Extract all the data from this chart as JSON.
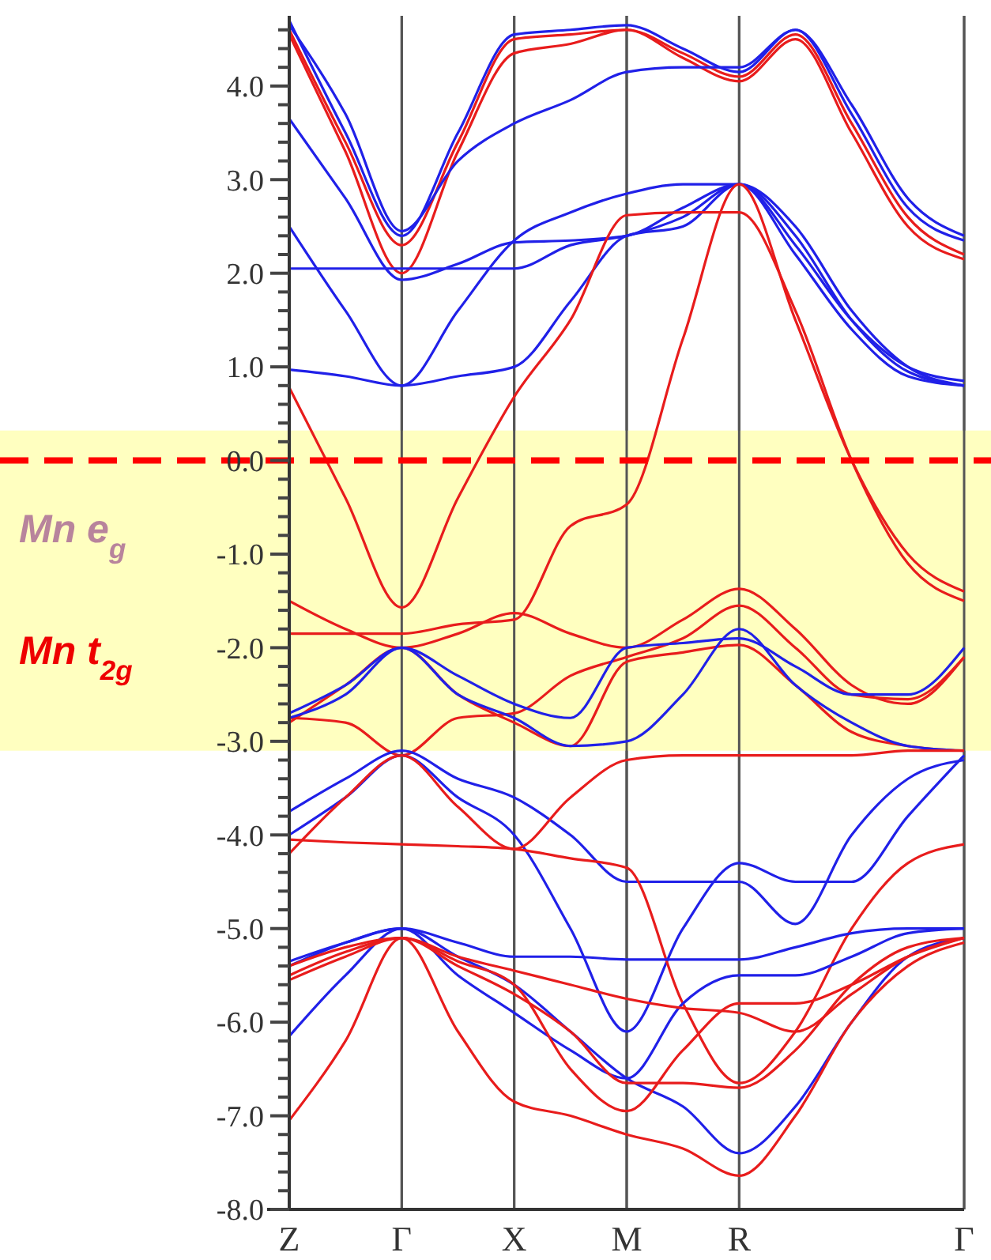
{
  "chart_data": {
    "type": "line",
    "categories": [
      "Z",
      null,
      "Γ",
      null,
      "X",
      null,
      "M",
      null,
      "R",
      null,
      null,
      null,
      "Γ"
    ],
    "ylim": [
      -8,
      4.75
    ],
    "yticks": [
      {
        "value": -8,
        "label": "-8.0"
      },
      {
        "value": -7.8,
        "label": null
      },
      {
        "value": -7.6,
        "label": null
      },
      {
        "value": -7.4,
        "label": null
      },
      {
        "value": -7.2,
        "label": null
      },
      {
        "value": -7,
        "label": "-7.0"
      },
      {
        "value": -6.8,
        "label": null
      },
      {
        "value": -6.6,
        "label": null
      },
      {
        "value": -6.4,
        "label": null
      },
      {
        "value": -6.2,
        "label": null
      },
      {
        "value": -6,
        "label": "-6.0"
      },
      {
        "value": -5.8,
        "label": null
      },
      {
        "value": -5.6,
        "label": null
      },
      {
        "value": -5.4,
        "label": null
      },
      {
        "value": -5.2,
        "label": null
      },
      {
        "value": -5,
        "label": "-5.0"
      },
      {
        "value": -4.8,
        "label": null
      },
      {
        "value": -4.6,
        "label": null
      },
      {
        "value": -4.4,
        "label": null
      },
      {
        "value": -4.2,
        "label": null
      },
      {
        "value": -4,
        "label": "-4.0"
      },
      {
        "value": -3.8,
        "label": null
      },
      {
        "value": -3.6,
        "label": null
      },
      {
        "value": -3.4,
        "label": null
      },
      {
        "value": -3.2,
        "label": null
      },
      {
        "value": -3,
        "label": "-3.0"
      },
      {
        "value": -2.8,
        "label": null
      },
      {
        "value": -2.6,
        "label": null
      },
      {
        "value": -2.4,
        "label": null
      },
      {
        "value": -2.2,
        "label": null
      },
      {
        "value": -2,
        "label": "-2.0"
      },
      {
        "value": -1.8,
        "label": null
      },
      {
        "value": -1.6,
        "label": null
      },
      {
        "value": -1.4,
        "label": null
      },
      {
        "value": -1.2,
        "label": null
      },
      {
        "value": -1,
        "label": "-1.0"
      },
      {
        "value": -0.8,
        "label": null
      },
      {
        "value": -0.6,
        "label": null
      },
      {
        "value": -0.4,
        "label": null
      },
      {
        "value": -0.2,
        "label": null
      },
      {
        "value": 0,
        "label": "0.0"
      },
      {
        "value": 0.2,
        "label": null
      },
      {
        "value": 0.4,
        "label": null
      },
      {
        "value": 0.6,
        "label": null
      },
      {
        "value": 0.8,
        "label": null
      },
      {
        "value": 1,
        "label": "1.0"
      },
      {
        "value": 1.2,
        "label": null
      },
      {
        "value": 1.4,
        "label": null
      },
      {
        "value": 1.6,
        "label": null
      },
      {
        "value": 1.8,
        "label": null
      },
      {
        "value": 2,
        "label": "2.0"
      },
      {
        "value": 2.2,
        "label": null
      },
      {
        "value": 2.4,
        "label": null
      },
      {
        "value": 2.6,
        "label": null
      },
      {
        "value": 2.8,
        "label": null
      },
      {
        "value": 3,
        "label": "3.0"
      },
      {
        "value": 3.2,
        "label": null
      },
      {
        "value": 3.4,
        "label": null
      },
      {
        "value": 3.6,
        "label": null
      },
      {
        "value": 3.8,
        "label": null
      },
      {
        "value": 4,
        "label": "4.0"
      },
      {
        "value": 4.2,
        "label": null
      },
      {
        "value": 4.4,
        "label": null
      },
      {
        "value": 4.6,
        "label": null
      }
    ],
    "grid": "x",
    "line_style": "solid",
    "series": [
      {
        "color": "#2020e8",
        "values": [
          4.7,
          3.5,
          2.4,
          3.5,
          4.55,
          4.6,
          4.65,
          4.4,
          4.15,
          4.6,
          3.7,
          2.7,
          2.35
        ]
      },
      {
        "color": "#e81c1c",
        "values": [
          4.6,
          3.4,
          2.3,
          3.4,
          4.5,
          4.55,
          4.6,
          4.35,
          4.1,
          4.55,
          3.6,
          2.6,
          2.2
        ]
      },
      {
        "color": "#e81c1c",
        "values": [
          4.55,
          3.3,
          2.0,
          3.3,
          4.35,
          4.45,
          4.6,
          4.3,
          4.05,
          4.5,
          3.5,
          2.5,
          2.15
        ]
      },
      {
        "color": "#2020e8",
        "values": [
          4.65,
          3.7,
          2.45,
          3.2,
          3.6,
          3.85,
          4.15,
          4.2,
          4.2,
          4.6,
          3.8,
          2.8,
          2.4
        ]
      },
      {
        "color": "#2020e8",
        "values": [
          3.65,
          2.8,
          1.93,
          2.1,
          2.33,
          2.35,
          2.4,
          2.7,
          2.95,
          2.5,
          1.6,
          1.0,
          0.8
        ]
      },
      {
        "color": "#2020e8",
        "values": [
          2.05,
          2.05,
          2.05,
          2.05,
          2.05,
          2.3,
          2.4,
          2.6,
          2.95,
          2.4,
          1.5,
          0.95,
          0.8
        ]
      },
      {
        "color": "#2020e8",
        "values": [
          2.5,
          1.6,
          0.8,
          1.6,
          2.35,
          2.65,
          2.85,
          2.95,
          2.95,
          2.3,
          1.5,
          1.0,
          0.85
        ]
      },
      {
        "color": "#2020e8",
        "values": [
          0.97,
          0.9,
          0.8,
          0.9,
          1.0,
          1.7,
          2.4,
          2.5,
          2.95,
          2.2,
          1.4,
          0.9,
          0.8
        ]
      },
      {
        "color": "#e81c1c",
        "values": [
          0.78,
          -0.4,
          -1.57,
          -0.4,
          0.68,
          1.5,
          2.62,
          2.65,
          2.65,
          1.6,
          0.0,
          -1.1,
          -1.5
        ]
      },
      {
        "color": "#e81c1c",
        "values": [
          -1.85,
          -1.85,
          -1.85,
          -1.75,
          -1.7,
          -0.7,
          -0.47,
          1.3,
          2.95,
          1.5,
          0.0,
          -1.0,
          -1.4
        ]
      },
      {
        "color": "#e81c1c",
        "values": [
          -1.5,
          -1.8,
          -2.0,
          -1.85,
          -1.63,
          -1.85,
          -2.0,
          -1.7,
          -1.37,
          -1.8,
          -2.4,
          -2.6,
          -2.1
        ]
      },
      {
        "color": "#e81c1c",
        "values": [
          -2.75,
          -2.8,
          -3.15,
          -2.75,
          -2.7,
          -2.3,
          -2.1,
          -1.9,
          -1.55,
          -2.0,
          -2.5,
          -2.55,
          -2.1
        ]
      },
      {
        "color": "#e81c1c",
        "values": [
          -2.8,
          -2.4,
          -2.0,
          -2.5,
          -2.8,
          -3.05,
          -2.15,
          -2.05,
          -1.97,
          -2.4,
          -2.9,
          -3.05,
          -3.1
        ]
      },
      {
        "color": "#2020e8",
        "values": [
          -2.7,
          -2.4,
          -2.0,
          -2.3,
          -2.6,
          -2.75,
          -2.0,
          -1.95,
          -1.9,
          -2.2,
          -2.5,
          -2.5,
          -2.0
        ]
      },
      {
        "color": "#2020e8",
        "values": [
          -2.75,
          -2.5,
          -2.0,
          -2.5,
          -2.75,
          -3.05,
          -3.0,
          -2.5,
          -1.8,
          -2.4,
          -2.8,
          -3.05,
          -3.1
        ]
      },
      {
        "color": "#2020e8",
        "values": [
          -3.75,
          -3.4,
          -3.1,
          -3.4,
          -3.6,
          -4.0,
          -4.5,
          -4.5,
          -4.5,
          -4.95,
          -4.0,
          -3.4,
          -3.2
        ]
      },
      {
        "color": "#2020e8",
        "values": [
          -4.0,
          -3.6,
          -3.15,
          -3.6,
          -4.0,
          -5.0,
          -6.1,
          -5.0,
          -4.3,
          -4.5,
          -4.5,
          -3.8,
          -3.15
        ]
      },
      {
        "color": "#e81c1c",
        "values": [
          -4.05,
          -4.08,
          -4.1,
          -4.12,
          -4.15,
          -4.25,
          -4.35,
          -5.8,
          -6.65,
          -6.1,
          -5.0,
          -4.3,
          -4.1
        ]
      },
      {
        "color": "#e81c1c",
        "values": [
          -4.2,
          -3.6,
          -3.15,
          -3.7,
          -4.15,
          -3.6,
          -3.2,
          -3.15,
          -3.15,
          -3.15,
          -3.15,
          -3.1,
          -3.1
        ]
      },
      {
        "color": "#2020e8",
        "values": [
          -5.35,
          -5.15,
          -5.0,
          -5.15,
          -5.3,
          -5.3,
          -5.33,
          -5.33,
          -5.33,
          -5.2,
          -5.05,
          -5.0,
          -5.0
        ]
      },
      {
        "color": "#2020e8",
        "values": [
          -5.4,
          -5.15,
          -5.0,
          -5.3,
          -5.6,
          -6.1,
          -6.6,
          -6.9,
          -7.4,
          -6.9,
          -6.0,
          -5.3,
          -5.1
        ]
      },
      {
        "color": "#2020e8",
        "values": [
          -6.15,
          -5.5,
          -5.0,
          -5.5,
          -5.9,
          -6.3,
          -6.6,
          -5.8,
          -5.5,
          -5.5,
          -5.3,
          -5.05,
          -5.0
        ]
      },
      {
        "color": "#e81c1c",
        "values": [
          -5.4,
          -5.2,
          -5.1,
          -5.3,
          -5.45,
          -5.6,
          -5.75,
          -5.85,
          -5.9,
          -6.1,
          -5.7,
          -5.3,
          -5.1
        ]
      },
      {
        "color": "#e81c1c",
        "values": [
          -5.5,
          -5.25,
          -5.1,
          -5.35,
          -5.6,
          -6.5,
          -6.95,
          -6.3,
          -5.8,
          -5.8,
          -5.6,
          -5.3,
          -5.1
        ]
      },
      {
        "color": "#e81c1c",
        "values": [
          -7.05,
          -6.2,
          -5.1,
          -6.1,
          -6.85,
          -7.0,
          -7.2,
          -7.35,
          -7.64,
          -7.0,
          -6.0,
          -5.4,
          -5.15
        ]
      },
      {
        "color": "#e81c1c",
        "values": [
          -5.55,
          -5.3,
          -5.1,
          -5.4,
          -5.7,
          -6.1,
          -6.65,
          -6.65,
          -6.7,
          -6.3,
          -5.6,
          -5.2,
          -5.1
        ]
      }
    ],
    "ref_lines": [
      {
        "axis": "y",
        "value": 0,
        "color": "#ff0000",
        "line_style": "dashed"
      }
    ],
    "bands": [
      {
        "axis": "y",
        "from": -3.1,
        "to": 0.32,
        "color": "#ffffc0"
      }
    ],
    "annotations": [
      "Mn e$_{g}$",
      "Mn t$_{2g}$"
    ]
  }
}
